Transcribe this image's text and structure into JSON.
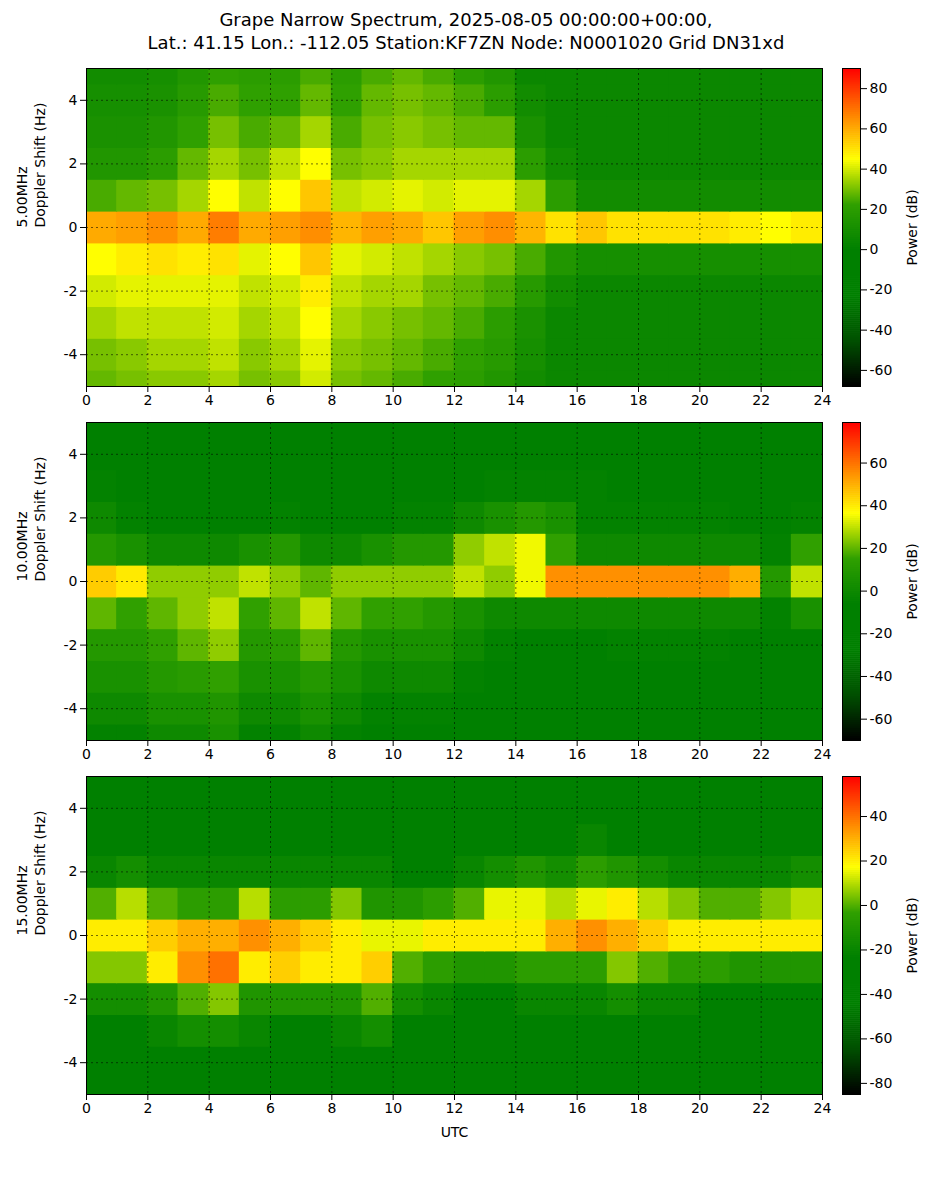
{
  "chart_data": [
    {
      "type": "heatmap",
      "title": "Grape Narrow Spectrum, 2025-08-05 00:00:00+00:00,",
      "subtitle": "Lat.: 41.15 Lon.: -112.05 Station:KF7ZN Node: N0001020 Grid DN31xd",
      "frequency_label": "5.00MHz",
      "ylabel": "Doppler Shift (Hz)",
      "xlim": [
        0,
        24
      ],
      "xticks": [
        0,
        2,
        4,
        6,
        8,
        10,
        12,
        14,
        16,
        18,
        20,
        22,
        24
      ],
      "ylim": [
        -5,
        5
      ],
      "yticks": [
        -4,
        -2,
        0,
        2,
        4
      ],
      "grid": true,
      "x_edges": [
        0,
        1,
        2,
        3,
        4,
        5,
        6,
        7,
        8,
        9,
        10,
        11,
        12,
        13,
        14,
        15,
        16,
        17,
        18,
        19,
        20,
        21,
        22,
        23,
        24
      ],
      "y_edges": [
        -5,
        -4.5,
        -3.5,
        -2.5,
        -1.5,
        -0.5,
        0.5,
        1.5,
        2.5,
        3.5,
        4.5,
        5
      ],
      "cells": [
        [
          28,
          30,
          32,
          32,
          35,
          30,
          32,
          40,
          30,
          28,
          25,
          22,
          20,
          15,
          8,
          5,
          5,
          5,
          5,
          5,
          5,
          5,
          5,
          5
        ],
        [
          30,
          32,
          35,
          35,
          38,
          32,
          35,
          42,
          32,
          30,
          28,
          25,
          22,
          18,
          10,
          5,
          5,
          5,
          5,
          5,
          5,
          5,
          5,
          5
        ],
        [
          35,
          38,
          38,
          38,
          40,
          35,
          38,
          45,
          35,
          32,
          30,
          28,
          25,
          20,
          12,
          5,
          5,
          5,
          5,
          5,
          5,
          5,
          5,
          5
        ],
        [
          40,
          42,
          42,
          42,
          42,
          38,
          40,
          48,
          38,
          35,
          35,
          30,
          28,
          25,
          18,
          8,
          5,
          5,
          5,
          5,
          5,
          5,
          5,
          5
        ],
        [
          45,
          48,
          50,
          48,
          50,
          42,
          45,
          55,
          42,
          40,
          38,
          35,
          32,
          30,
          25,
          15,
          10,
          10,
          10,
          10,
          10,
          10,
          10,
          10
        ],
        [
          60,
          62,
          65,
          60,
          68,
          60,
          62,
          65,
          58,
          62,
          60,
          55,
          62,
          65,
          58,
          50,
          55,
          50,
          50,
          50,
          50,
          48,
          45,
          48
        ],
        [
          25,
          28,
          30,
          35,
          45,
          38,
          45,
          55,
          38,
          40,
          42,
          40,
          42,
          42,
          35,
          20,
          8,
          8,
          8,
          8,
          8,
          8,
          8,
          8
        ],
        [
          15,
          15,
          20,
          28,
          35,
          30,
          38,
          45,
          30,
          32,
          35,
          35,
          35,
          35,
          20,
          8,
          5,
          5,
          5,
          5,
          5,
          5,
          5,
          5
        ],
        [
          12,
          12,
          15,
          22,
          30,
          25,
          28,
          35,
          25,
          30,
          32,
          30,
          28,
          28,
          12,
          5,
          5,
          5,
          5,
          5,
          5,
          5,
          5,
          5
        ],
        [
          10,
          10,
          12,
          18,
          25,
          22,
          22,
          28,
          22,
          28,
          30,
          28,
          25,
          20,
          8,
          5,
          5,
          5,
          5,
          5,
          5,
          5,
          5,
          5
        ],
        [
          8,
          8,
          10,
          15,
          22,
          20,
          20,
          25,
          20,
          25,
          28,
          25,
          20,
          15,
          5,
          5,
          5,
          5,
          5,
          5,
          5,
          5,
          5,
          5
        ]
      ],
      "colorbar": {
        "label": "Power (dB)",
        "lim": [
          -68,
          90
        ],
        "ticks": [
          -60,
          -40,
          -20,
          0,
          20,
          40,
          60,
          80
        ]
      }
    },
    {
      "type": "heatmap",
      "frequency_label": "10.00MHz",
      "ylabel": "Doppler Shift (Hz)",
      "xlim": [
        0,
        24
      ],
      "xticks": [
        0,
        2,
        4,
        6,
        8,
        10,
        12,
        14,
        16,
        18,
        20,
        22,
        24
      ],
      "ylim": [
        -5,
        5
      ],
      "yticks": [
        -4,
        -2,
        0,
        2,
        4
      ],
      "grid": true,
      "x_edges": [
        0,
        1,
        2,
        3,
        4,
        5,
        6,
        7,
        8,
        9,
        10,
        11,
        12,
        13,
        14,
        15,
        16,
        17,
        18,
        19,
        20,
        21,
        22,
        23,
        24
      ],
      "y_edges": [
        -5,
        -4.5,
        -3.5,
        -2.5,
        -1.5,
        -0.5,
        0.5,
        1.5,
        2.5,
        3.5,
        4.5,
        5
      ],
      "cells": [
        [
          -5,
          -5,
          0,
          0,
          5,
          -5,
          -5,
          0,
          -5,
          -10,
          -10,
          -10,
          -10,
          -12,
          -12,
          -12,
          -12,
          -12,
          -12,
          -12,
          -12,
          -12,
          -12,
          -12
        ],
        [
          0,
          0,
          5,
          5,
          8,
          0,
          0,
          5,
          0,
          -5,
          -5,
          -5,
          -8,
          -10,
          -10,
          -10,
          -10,
          -10,
          -10,
          -10,
          -10,
          -10,
          -10,
          -10
        ],
        [
          5,
          5,
          10,
          12,
          15,
          5,
          5,
          10,
          5,
          0,
          0,
          0,
          -5,
          -10,
          -10,
          -10,
          -10,
          -10,
          -10,
          -10,
          -10,
          -10,
          -10,
          -10
        ],
        [
          10,
          10,
          15,
          20,
          25,
          10,
          12,
          20,
          10,
          5,
          5,
          5,
          0,
          -5,
          -8,
          -8,
          -8,
          -5,
          -5,
          -5,
          -5,
          -8,
          -10,
          -8
        ],
        [
          20,
          15,
          20,
          25,
          30,
          15,
          20,
          30,
          20,
          15,
          15,
          10,
          5,
          0,
          0,
          0,
          0,
          0,
          0,
          0,
          0,
          0,
          -5,
          5
        ],
        [
          45,
          40,
          25,
          25,
          25,
          30,
          25,
          20,
          25,
          25,
          25,
          25,
          30,
          25,
          35,
          55,
          55,
          55,
          55,
          55,
          55,
          50,
          10,
          30
        ],
        [
          10,
          5,
          0,
          0,
          0,
          5,
          10,
          0,
          0,
          5,
          10,
          10,
          25,
          30,
          35,
          15,
          0,
          0,
          0,
          0,
          0,
          0,
          -5,
          15
        ],
        [
          0,
          -5,
          -8,
          -8,
          -8,
          -8,
          -5,
          -8,
          -8,
          -8,
          -5,
          -5,
          0,
          5,
          10,
          5,
          -5,
          -5,
          -5,
          -5,
          -5,
          -8,
          -10,
          -5
        ],
        [
          -5,
          -8,
          -10,
          -10,
          -10,
          -10,
          -10,
          -10,
          -10,
          -10,
          -10,
          -10,
          -8,
          -5,
          -5,
          -5,
          -5,
          -8,
          -8,
          -8,
          -8,
          -10,
          -10,
          -10
        ],
        [
          -8,
          -10,
          -12,
          -12,
          -12,
          -12,
          -12,
          -12,
          -12,
          -12,
          -12,
          -12,
          -10,
          -10,
          -8,
          -8,
          -8,
          -12,
          -12,
          -12,
          -12,
          -12,
          -12,
          -12
        ],
        [
          -10,
          -12,
          -15,
          -15,
          -15,
          -15,
          -15,
          -15,
          -15,
          -15,
          -15,
          -15,
          -15,
          -15,
          -10,
          -10,
          -10,
          -15,
          -15,
          -15,
          -15,
          -15,
          -15,
          -15
        ]
      ],
      "colorbar": {
        "label": "Power (dB)",
        "lim": [
          -70,
          79
        ],
        "ticks": [
          -60,
          -40,
          -20,
          0,
          20,
          40,
          60
        ]
      }
    },
    {
      "type": "heatmap",
      "frequency_label": "15.00MHz",
      "ylabel": "Doppler Shift (Hz)",
      "xlabel": "UTC",
      "xlim": [
        0,
        24
      ],
      "xticks": [
        0,
        2,
        4,
        6,
        8,
        10,
        12,
        14,
        16,
        18,
        20,
        22,
        24
      ],
      "ylim": [
        -5,
        5
      ],
      "yticks": [
        -4,
        -2,
        0,
        2,
        4
      ],
      "grid": true,
      "x_edges": [
        0,
        1,
        2,
        3,
        4,
        5,
        6,
        7,
        8,
        9,
        10,
        11,
        12,
        13,
        14,
        15,
        16,
        17,
        18,
        19,
        20,
        21,
        22,
        23,
        24
      ],
      "y_edges": [
        -5,
        -4.5,
        -3.5,
        -2.5,
        -1.5,
        -0.5,
        0.5,
        1.5,
        2.5,
        3.5,
        4.5,
        5
      ],
      "cells": [
        [
          -38,
          -38,
          -38,
          -38,
          -38,
          -38,
          -38,
          -38,
          -38,
          -38,
          -38,
          -38,
          -38,
          -38,
          -38,
          -38,
          -38,
          -38,
          -38,
          -38,
          -38,
          -38,
          -38,
          -38
        ],
        [
          -32,
          -32,
          -30,
          -28,
          -28,
          -30,
          -32,
          -32,
          -30,
          -28,
          -32,
          -35,
          -35,
          -35,
          -35,
          -35,
          -35,
          -35,
          -35,
          -35,
          -35,
          -35,
          -35,
          -35
        ],
        [
          -25,
          -25,
          -20,
          -15,
          -15,
          -20,
          -25,
          -25,
          -20,
          -15,
          -25,
          -30,
          -30,
          -30,
          -30,
          -30,
          -30,
          -30,
          -30,
          -30,
          -30,
          -30,
          -30,
          -30
        ],
        [
          -15,
          -15,
          -10,
          0,
          5,
          -10,
          -10,
          -10,
          -10,
          0,
          -15,
          -20,
          -25,
          -25,
          -20,
          -20,
          -20,
          -15,
          -20,
          -20,
          -25,
          -25,
          -25,
          -25
        ],
        [
          5,
          5,
          20,
          35,
          40,
          20,
          25,
          20,
          20,
          25,
          0,
          -5,
          -10,
          -10,
          -5,
          -5,
          -5,
          5,
          0,
          -5,
          -5,
          -10,
          -10,
          -10
        ],
        [
          20,
          20,
          25,
          30,
          30,
          35,
          30,
          25,
          20,
          15,
          15,
          20,
          20,
          20,
          20,
          30,
          35,
          30,
          25,
          20,
          20,
          20,
          20,
          20
        ],
        [
          0,
          10,
          0,
          -5,
          -5,
          10,
          -5,
          -5,
          5,
          -10,
          -10,
          -5,
          0,
          15,
          15,
          10,
          15,
          20,
          10,
          5,
          0,
          0,
          5,
          10
        ],
        [
          -20,
          -15,
          -20,
          -20,
          -20,
          -20,
          -20,
          -20,
          -20,
          -20,
          -25,
          -25,
          -20,
          -15,
          -10,
          -15,
          -5,
          -10,
          -15,
          -20,
          -20,
          -20,
          -20,
          -15
        ],
        [
          -25,
          -25,
          -25,
          -28,
          -28,
          -28,
          -28,
          -28,
          -28,
          -30,
          -30,
          -30,
          -28,
          -25,
          -25,
          -25,
          -20,
          -25,
          -28,
          -28,
          -30,
          -30,
          -30,
          -28
        ],
        [
          -25,
          -25,
          -28,
          -30,
          -30,
          -30,
          -30,
          -30,
          -30,
          -32,
          -32,
          -32,
          -30,
          -30,
          -30,
          -30,
          -28,
          -30,
          -32,
          -32,
          -32,
          -32,
          -32,
          -32
        ],
        [
          -25,
          -25,
          -25,
          -30,
          -30,
          -30,
          -30,
          -30,
          -30,
          -35,
          -35,
          -35,
          -35,
          -35,
          -35,
          -35,
          -35,
          -35,
          -35,
          -35,
          -35,
          -35,
          -35,
          -35
        ]
      ],
      "colorbar": {
        "label": "Power (dB)",
        "lim": [
          -85,
          58
        ],
        "ticks": [
          -80,
          -60,
          -40,
          -20,
          0,
          20,
          40
        ]
      }
    }
  ]
}
